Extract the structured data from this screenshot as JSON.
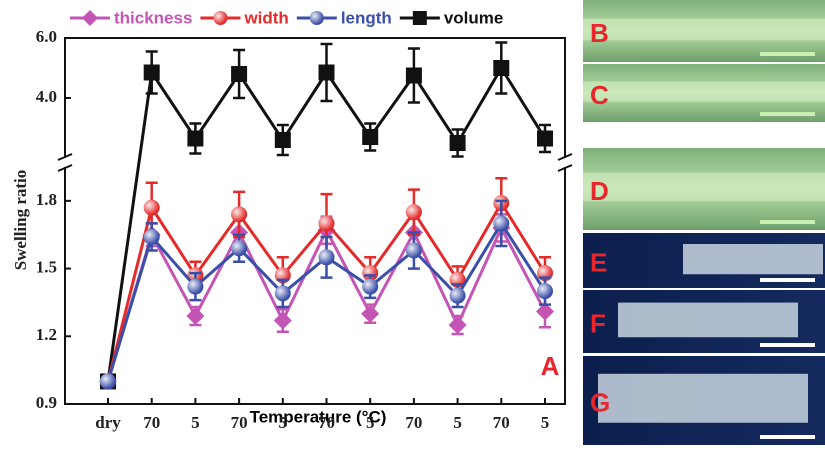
{
  "chart_data": {
    "type": "line",
    "x_label": "Temperature (°C)",
    "y_label": "Swelling ratio",
    "categories": [
      "dry",
      "70",
      "5",
      "70",
      "5",
      "70",
      "5",
      "70",
      "5",
      "70",
      "5"
    ],
    "ylim": [
      0.9,
      6.0
    ],
    "y_break": [
      1.95,
      2.0
    ],
    "yticks": [
      {
        "value": 0.9,
        "label": "0.9"
      },
      {
        "value": 1.2,
        "label": "1.2"
      },
      {
        "value": 1.5,
        "label": "1.5"
      },
      {
        "value": 1.8,
        "label": "1.8"
      },
      {
        "value": 4.0,
        "label": "4.0"
      },
      {
        "value": 6.0,
        "label": "6.0"
      }
    ],
    "series": [
      {
        "name": "volume",
        "color": "#111111",
        "marker": "square",
        "values": [
          1.0,
          4.85,
          2.65,
          4.8,
          2.6,
          4.85,
          2.7,
          4.75,
          2.5,
          5.0,
          2.65
        ],
        "errors": [
          0.02,
          0.7,
          0.5,
          0.8,
          0.5,
          0.95,
          0.45,
          0.9,
          0.45,
          0.85,
          0.45
        ]
      },
      {
        "name": "thickness",
        "color": "#c555b5",
        "marker": "diamond",
        "values": [
          1.0,
          1.65,
          1.29,
          1.66,
          1.27,
          1.67,
          1.3,
          1.66,
          1.25,
          1.68,
          1.31
        ],
        "errors": [
          0.01,
          0.05,
          0.04,
          0.06,
          0.05,
          0.06,
          0.04,
          0.06,
          0.04,
          0.06,
          0.07
        ]
      },
      {
        "name": "width",
        "color": "#e52a2a",
        "marker": "circle",
        "values": [
          1.0,
          1.77,
          1.47,
          1.74,
          1.47,
          1.7,
          1.48,
          1.75,
          1.45,
          1.79,
          1.48
        ],
        "errors": [
          0.01,
          0.11,
          0.06,
          0.1,
          0.08,
          0.13,
          0.07,
          0.1,
          0.06,
          0.11,
          0.07
        ]
      },
      {
        "name": "length",
        "color": "#3a4fa8",
        "marker": "circle",
        "values": [
          1.0,
          1.64,
          1.42,
          1.59,
          1.39,
          1.55,
          1.42,
          1.58,
          1.38,
          1.7,
          1.4
        ],
        "errors": [
          0.01,
          0.06,
          0.06,
          0.06,
          0.06,
          0.09,
          0.05,
          0.08,
          0.05,
          0.1,
          0.06
        ]
      }
    ],
    "legend_order": [
      "thickness",
      "width",
      "length",
      "volume"
    ],
    "annotations": [
      "A"
    ],
    "panel_labels": [
      "B",
      "C",
      "D",
      "E",
      "F",
      "G"
    ]
  }
}
